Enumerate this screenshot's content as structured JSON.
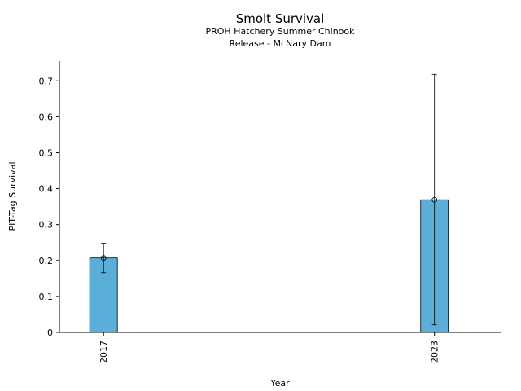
{
  "chart_data": {
    "type": "bar",
    "title": "Smolt Survival",
    "subtitle_lines": [
      "PROH Hatchery Summer Chinook",
      "Release - McNary Dam"
    ],
    "xlabel": "Year",
    "ylabel": "PIT-Tag Survival",
    "categories": [
      "2017",
      "2023"
    ],
    "values": [
      0.207,
      0.369
    ],
    "error_low": [
      0.166,
      0.021
    ],
    "error_high": [
      0.248,
      0.718
    ],
    "ylim": [
      0,
      0.755
    ],
    "yticks": [
      "0",
      "0.1",
      "0.2",
      "0.3",
      "0.4",
      "0.5",
      "0.6",
      "0.7"
    ],
    "ytick_values": [
      0,
      0.1,
      0.2,
      0.3,
      0.4,
      0.5,
      0.6,
      0.7
    ],
    "xlim": [
      2016.2,
      2024.2
    ],
    "bar_color": "#5baed8",
    "grid": false
  }
}
